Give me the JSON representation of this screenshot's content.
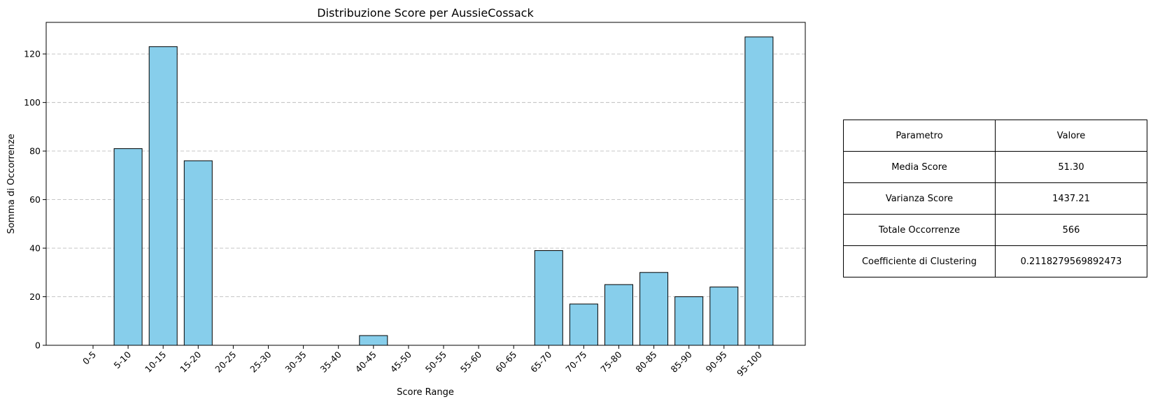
{
  "chart_data": {
    "type": "bar",
    "title": "Distribuzione Score per AussieCossack",
    "xlabel": "Score Range",
    "ylabel": "Somma di Occorrenze",
    "categories": [
      "0-5",
      "5-10",
      "10-15",
      "15-20",
      "20-25",
      "25-30",
      "30-35",
      "35-40",
      "40-45",
      "45-50",
      "50-55",
      "55-60",
      "60-65",
      "65-70",
      "70-75",
      "75-80",
      "80-85",
      "85-90",
      "90-95",
      "95-100"
    ],
    "values": [
      0,
      81,
      123,
      76,
      0,
      0,
      0,
      0,
      4,
      0,
      0,
      0,
      0,
      39,
      17,
      25,
      30,
      20,
      24,
      127
    ],
    "ylim": [
      0,
      133
    ],
    "yticks": [
      0,
      20,
      40,
      60,
      80,
      100,
      120
    ],
    "grid": "y-dashed",
    "bar_color": "#87ceeb",
    "edge_color": "#000000"
  },
  "table": {
    "header": [
      "Parametro",
      "Valore"
    ],
    "rows": [
      [
        "Media Score",
        "51.30"
      ],
      [
        "Varianza Score",
        "1437.21"
      ],
      [
        "Totale Occorrenze",
        "566"
      ],
      [
        "Coefficiente di Clustering",
        "0.2118279569892473"
      ]
    ]
  }
}
